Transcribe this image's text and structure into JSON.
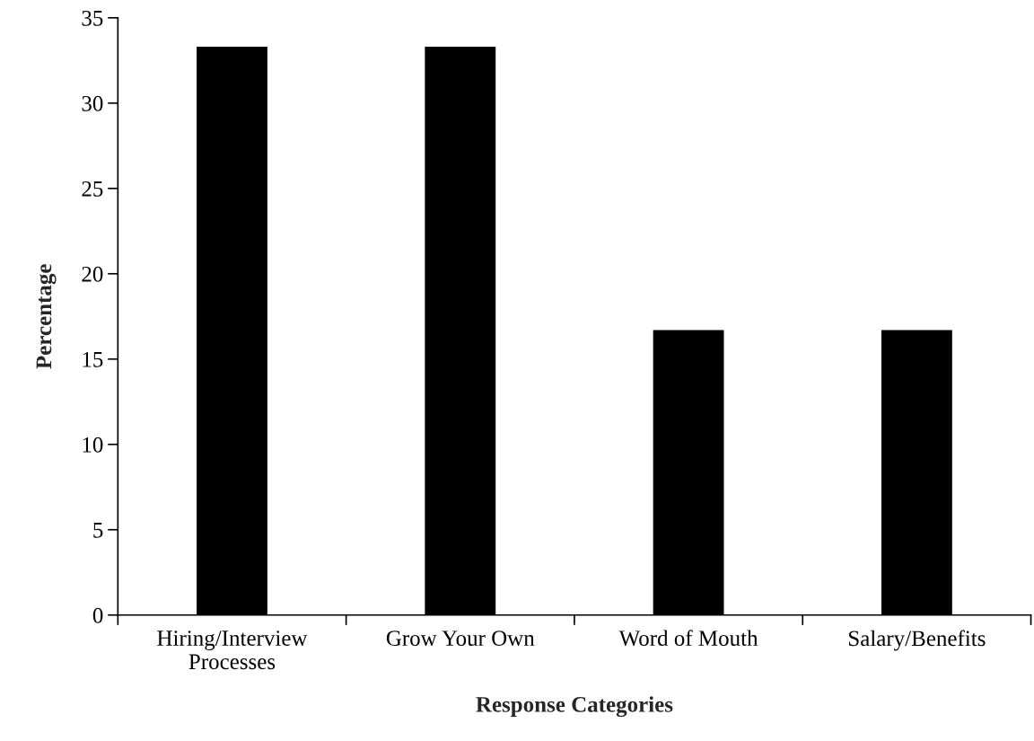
{
  "chart_data": {
    "type": "bar",
    "xlabel": "Response Categories",
    "ylabel": "Percentage",
    "categories": [
      "Hiring/Interview\nProcesses",
      "Grow Your Own",
      "Word of Mouth",
      "Salary/Benefits"
    ],
    "values": [
      33.3,
      33.3,
      16.7,
      16.7
    ],
    "color": "#000000",
    "ylim": [
      0,
      35
    ],
    "yticks": [
      0,
      5,
      10,
      15,
      20,
      25,
      30,
      35
    ],
    "grid": false,
    "legend": false
  }
}
